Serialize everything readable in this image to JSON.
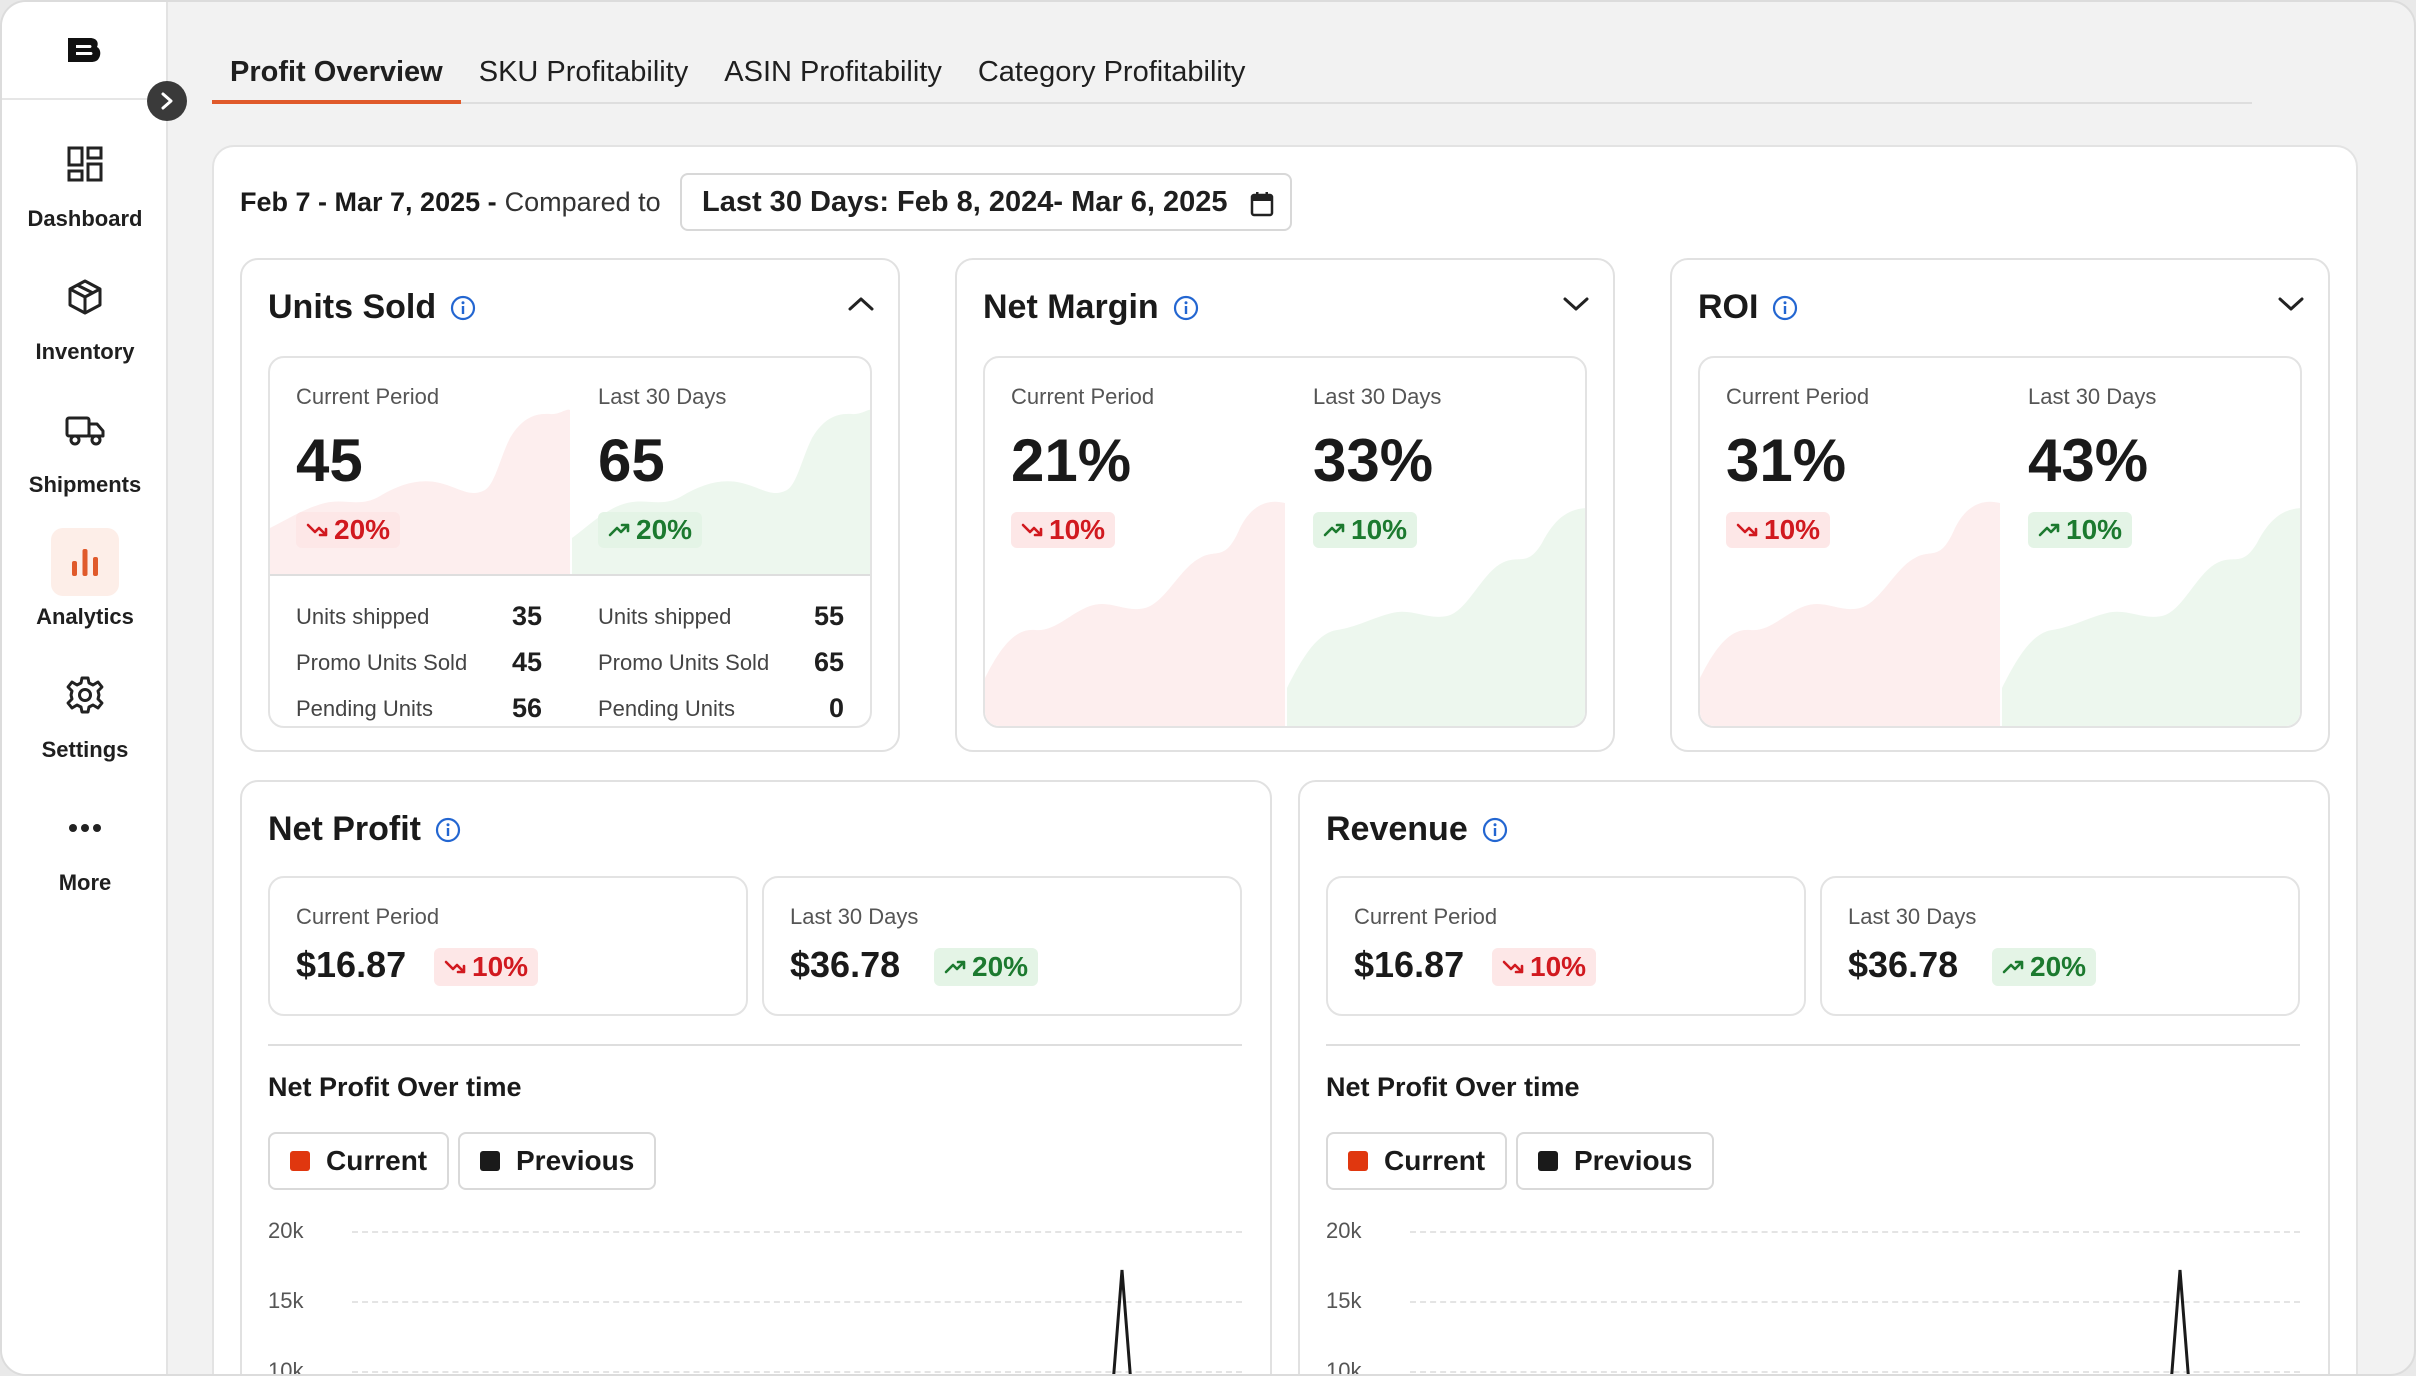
{
  "colors": {
    "accent": "#e05a2b",
    "negative": "#d1191f",
    "positive": "#1c7a2f",
    "current_series": "#e0370f",
    "previous_series": "#1a1a1a"
  },
  "sidebar": {
    "items": [
      {
        "label": "Dashboard",
        "icon": "dashboard-icon"
      },
      {
        "label": "Inventory",
        "icon": "box-icon"
      },
      {
        "label": "Shipments",
        "icon": "truck-icon"
      },
      {
        "label": "Analytics",
        "icon": "bar-chart-icon",
        "active": true
      },
      {
        "label": "Settings",
        "icon": "gear-icon"
      },
      {
        "label": "More",
        "icon": "more-icon"
      }
    ]
  },
  "tabs": [
    {
      "label": "Profit Overview",
      "active": true
    },
    {
      "label": "SKU Profitability"
    },
    {
      "label": "ASIN Profitability"
    },
    {
      "label": "Category Profitability"
    }
  ],
  "date": {
    "range": "Feb 7 - Mar 7, 2025 -",
    "compared_label": "Compared to",
    "picker_value": "Last 30 Days: Feb 8, 2024- Mar 6, 2025"
  },
  "units_sold": {
    "title": "Units Sold",
    "current": {
      "label": "Current Period",
      "value": "45",
      "change": "20%"
    },
    "previous": {
      "label": "Last 30 Days",
      "value": "65",
      "change": "20%"
    },
    "details_current": [
      {
        "label": "Units shipped",
        "value": "35"
      },
      {
        "label": "Promo Units Sold",
        "value": "45"
      },
      {
        "label": "Pending Units",
        "value": "56"
      }
    ],
    "details_previous": [
      {
        "label": "Units shipped",
        "value": "55"
      },
      {
        "label": "Promo Units Sold",
        "value": "65"
      },
      {
        "label": "Pending Units",
        "value": "0"
      }
    ]
  },
  "net_margin": {
    "title": "Net Margin",
    "current": {
      "label": "Current Period",
      "value": "21%",
      "change": "10%"
    },
    "previous": {
      "label": "Last 30 Days",
      "value": "33%",
      "change": "10%"
    }
  },
  "roi": {
    "title": "ROI",
    "current": {
      "label": "Current Period",
      "value": "31%",
      "change": "10%"
    },
    "previous": {
      "label": "Last 30 Days",
      "value": "43%",
      "change": "10%"
    }
  },
  "net_profit": {
    "title": "Net Profit",
    "current": {
      "label": "Current Period",
      "value": "$16.87",
      "change": "10%"
    },
    "previous": {
      "label": "Last 30 Days",
      "value": "$36.78",
      "change": "20%"
    },
    "chart_title": "Net Profit Over time",
    "legend_current": "Current",
    "legend_previous": "Previous",
    "y_ticks": [
      "20k",
      "15k",
      "10k"
    ]
  },
  "revenue": {
    "title": "Revenue",
    "current": {
      "label": "Current Period",
      "value": "$16.87",
      "change": "10%"
    },
    "previous": {
      "label": "Last 30 Days",
      "value": "$36.78",
      "change": "20%"
    },
    "chart_title": "Net Profit Over time",
    "legend_current": "Current",
    "legend_previous": "Previous",
    "y_ticks": [
      "20k",
      "15k",
      "10k"
    ]
  }
}
